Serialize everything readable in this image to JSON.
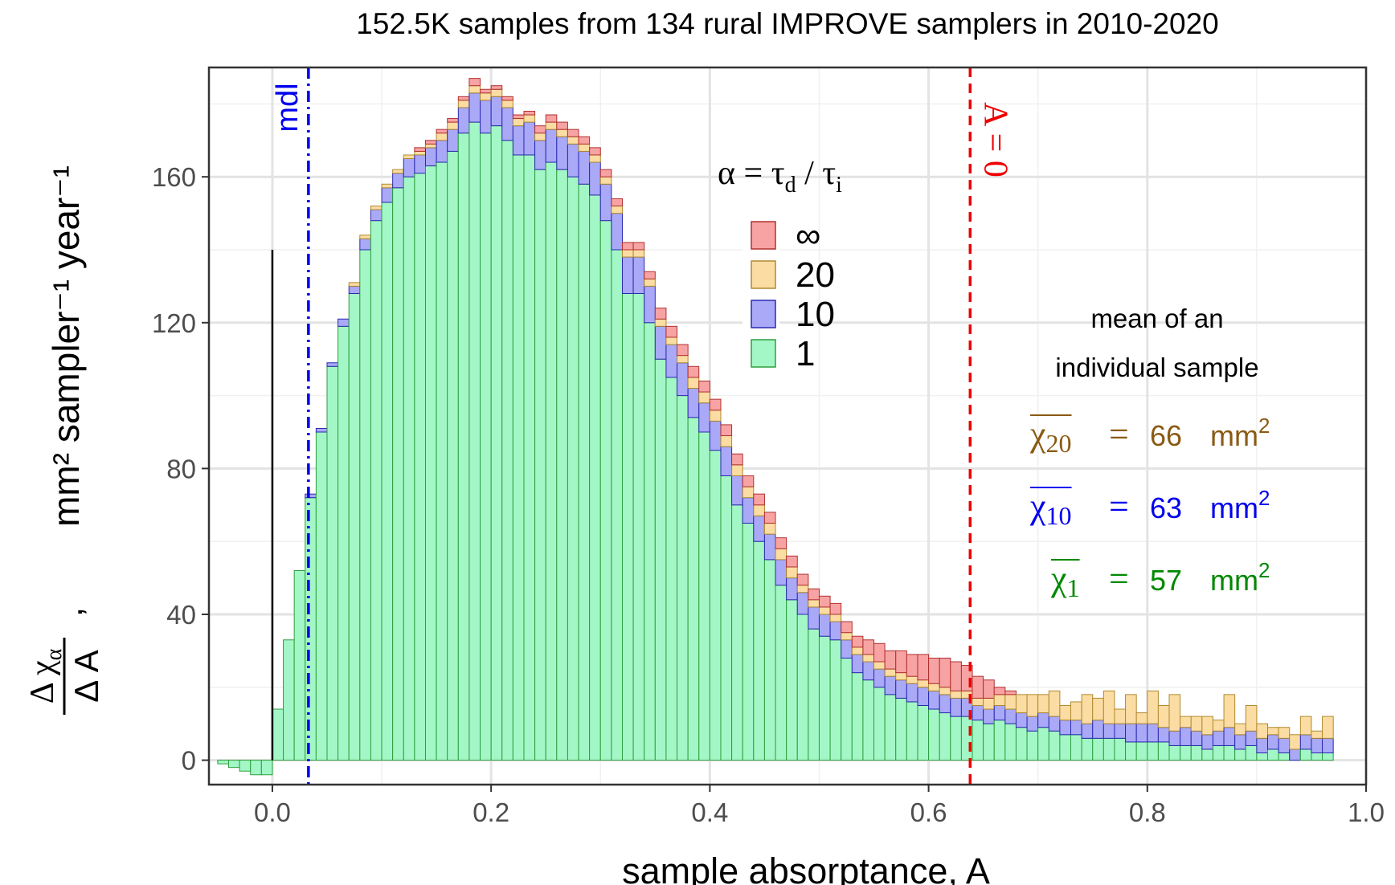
{
  "chart_data": {
    "type": "stacked_histogram",
    "title": "152.5K samples from 134 rural IMPROVE samplers in 2010-2020",
    "x_label": "sample absorptance, A",
    "y_label": "mm² sampler⁻¹ year⁻¹",
    "y_label_fraction": {
      "numerator": "Δ χ",
      "numerator_sub": "α",
      "denominator": "Δ A",
      "comma": ","
    },
    "xlim": [
      -0.058,
      1.0
    ],
    "ylim": [
      -6.7,
      190
    ],
    "xticks": [
      {
        "value": 0,
        "label": "0.0"
      },
      {
        "value": 0.2,
        "label": "0.2"
      },
      {
        "value": 0.4,
        "label": "0.4"
      },
      {
        "value": 0.6,
        "label": "0.6"
      },
      {
        "value": 0.8,
        "label": "0.8"
      },
      {
        "value": 1,
        "label": "1.0"
      }
    ],
    "yticks": [
      0,
      40,
      80,
      120,
      160
    ],
    "minor_xticks": [
      0.1,
      0.3,
      0.5,
      0.7,
      0.9
    ],
    "minor_yticks": [
      20,
      60,
      100,
      140,
      180
    ],
    "grid": true,
    "bins": [
      -0.05,
      -0.04,
      -0.03,
      -0.02,
      -0.01,
      0.0,
      0.01,
      0.02,
      0.03,
      0.04,
      0.05,
      0.06,
      0.07,
      0.08,
      0.09,
      0.1,
      0.11,
      0.12,
      0.13,
      0.14,
      0.15,
      0.16,
      0.17,
      0.18,
      0.19,
      0.2,
      0.21,
      0.22,
      0.23,
      0.24,
      0.25,
      0.26,
      0.27,
      0.28,
      0.29,
      0.3,
      0.31,
      0.32,
      0.33,
      0.34,
      0.35,
      0.36,
      0.37,
      0.38,
      0.39,
      0.4,
      0.41,
      0.42,
      0.43,
      0.44,
      0.45,
      0.46,
      0.47,
      0.48,
      0.49,
      0.5,
      0.51,
      0.52,
      0.53,
      0.54,
      0.55,
      0.56,
      0.57,
      0.58,
      0.59,
      0.6,
      0.61,
      0.62,
      0.63,
      0.64,
      0.65,
      0.66,
      0.67,
      0.68,
      0.69,
      0.7,
      0.71,
      0.72,
      0.73,
      0.74,
      0.75,
      0.76,
      0.77,
      0.78,
      0.79,
      0.8,
      0.81,
      0.82,
      0.83,
      0.84,
      0.85,
      0.86,
      0.87,
      0.88,
      0.89,
      0.9,
      0.91,
      0.92,
      0.93,
      0.94,
      0.95,
      0.96,
      0.97
    ],
    "series": [
      {
        "name": "1",
        "color": "#a3f7c6",
        "edge": "#2e9e3e",
        "values": [
          -1,
          -2,
          -3,
          -4,
          -4,
          14,
          33,
          52,
          72,
          90,
          108,
          119,
          128,
          140,
          148,
          153,
          157,
          160,
          161,
          163,
          164,
          167,
          172,
          175,
          172,
          174,
          170,
          166,
          166,
          162,
          164,
          162,
          160,
          158,
          155,
          148,
          140,
          128,
          128,
          120,
          110,
          105,
          100,
          94,
          90,
          85,
          78,
          70,
          65,
          60,
          55,
          48,
          44,
          40,
          36,
          34,
          33,
          28,
          24,
          22,
          20,
          18,
          17,
          16,
          15,
          14,
          13,
          12,
          12,
          11,
          10,
          11,
          10,
          9,
          8,
          9,
          8,
          7,
          7,
          6,
          6,
          6,
          6,
          5,
          5,
          5,
          5,
          4,
          4,
          4,
          3,
          4,
          4,
          3,
          4,
          2,
          3,
          2,
          0,
          3,
          2,
          2
        ]
      },
      {
        "name": "10",
        "color": "#a9a9f7",
        "edge": "#2a2ab0",
        "values": [
          0,
          0,
          0,
          0,
          0,
          0,
          0,
          0,
          1,
          1,
          1,
          2,
          2,
          3,
          3,
          4,
          4,
          5,
          5,
          5,
          6,
          6,
          7,
          8,
          9,
          8,
          9,
          8,
          9,
          8,
          9,
          9,
          9,
          9,
          9,
          10,
          10,
          10,
          10,
          10,
          9,
          9,
          9,
          8,
          8,
          8,
          8,
          8,
          7,
          7,
          7,
          7,
          6,
          6,
          6,
          6,
          5,
          5,
          5,
          5,
          5,
          5,
          5,
          5,
          5,
          5,
          5,
          5,
          5,
          4,
          4,
          4,
          4,
          4,
          4,
          4,
          4,
          4,
          4,
          4,
          5,
          4,
          4,
          5,
          5,
          5,
          4,
          4,
          5,
          4,
          4,
          4,
          5,
          4,
          4,
          4,
          4,
          4,
          3,
          4,
          4,
          4
        ]
      },
      {
        "name": "20",
        "color": "#fbdca3",
        "edge": "#b08a30",
        "values": [
          0,
          0,
          0,
          0,
          0,
          0,
          0,
          0,
          0,
          0,
          0,
          0,
          1,
          1,
          1,
          1,
          1,
          1,
          1,
          1,
          2,
          2,
          2,
          2,
          2,
          2,
          2,
          2,
          2,
          2,
          2,
          2,
          2,
          2,
          2,
          2,
          2,
          2,
          2,
          2,
          2,
          2,
          2,
          3,
          3,
          3,
          3,
          3,
          3,
          3,
          3,
          3,
          3,
          2,
          2,
          2,
          2,
          2,
          2,
          2,
          2,
          2,
          2,
          2,
          2,
          2,
          2,
          2,
          2,
          2,
          3,
          3,
          4,
          5,
          6,
          5,
          7,
          4,
          5,
          8,
          6,
          9,
          4,
          8,
          3,
          9,
          6,
          10,
          3,
          4,
          5,
          3,
          9,
          3,
          7,
          4,
          2,
          3,
          4,
          5,
          2,
          6
        ]
      },
      {
        "name": "∞",
        "color": "#f7a3a3",
        "edge": "#b03030",
        "values": [
          0,
          0,
          0,
          0,
          0,
          0,
          0,
          0,
          0,
          0,
          0,
          0,
          0,
          0,
          0,
          0,
          0,
          0,
          1,
          1,
          1,
          1,
          1,
          2,
          1,
          1,
          1,
          1,
          1,
          2,
          2,
          2,
          2,
          2,
          2,
          2,
          2,
          2,
          2,
          2,
          3,
          3,
          3,
          3,
          3,
          3,
          3,
          3,
          3,
          3,
          3,
          3,
          3,
          3,
          3,
          3,
          3,
          3,
          3,
          4,
          5,
          5,
          6,
          6,
          7,
          7,
          8,
          8,
          7,
          6,
          5,
          2,
          1,
          0,
          0,
          0,
          0,
          0,
          0,
          0,
          0,
          0,
          0,
          0,
          0,
          0,
          0,
          0,
          0,
          0,
          0,
          0,
          0,
          0,
          0,
          0,
          0,
          0,
          0,
          0,
          0,
          0
        ]
      }
    ],
    "legend_title": [
      "α = τ",
      "d",
      " / τ",
      "i"
    ],
    "zero_line": {
      "x": 0,
      "height": 140
    },
    "annotations": [
      {
        "text": "mdl",
        "x": 0.033,
        "color": "#0000ee",
        "dash": "dashdot"
      },
      {
        "text": "A = 0",
        "x": 0.638,
        "color": "#ee0000",
        "dash": "dashed"
      }
    ],
    "means_title": [
      "mean of an",
      "individual sample"
    ],
    "means": [
      {
        "symbol": "χ",
        "sub": "20",
        "eq": "=",
        "value": 66,
        "unit": "mm",
        "sup": "2",
        "color": "#8b5a14"
      },
      {
        "symbol": "χ",
        "sub": "10",
        "eq": "=",
        "value": 63,
        "unit": "mm",
        "sup": "2",
        "color": "#0000ee"
      },
      {
        "symbol": "χ",
        "sub": "1",
        "eq": "=",
        "value": 57,
        "unit": "mm",
        "sup": "2",
        "color": "#008800"
      }
    ]
  }
}
